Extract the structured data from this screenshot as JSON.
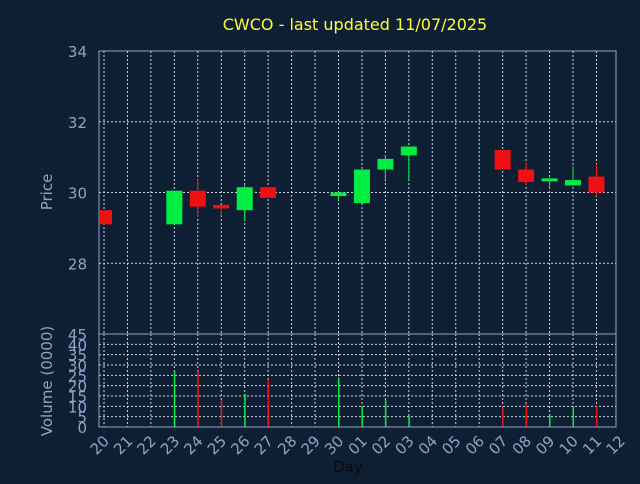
{
  "chart_data": [
    {
      "type": "candlestick",
      "title": "CWCO - last updated 11/07/2025",
      "ylabel": "Price",
      "ylim": [
        26,
        34
      ],
      "yticks": [
        "28",
        "30",
        "32",
        "34"
      ],
      "grid": true,
      "x_ticks": [
        "20",
        "21",
        "22",
        "23",
        "24",
        "25",
        "26",
        "27",
        "28",
        "29",
        "30",
        "01",
        "02",
        "03",
        "04",
        "05",
        "06",
        "07",
        "08",
        "09",
        "10",
        "11",
        "12"
      ],
      "candles": [
        {
          "x": "20",
          "open": 29.5,
          "close": 29.1,
          "high": 29.5,
          "low": 29.1
        },
        {
          "x": "23",
          "open": 29.1,
          "close": 30.05,
          "high": 30.05,
          "low": 29.1
        },
        {
          "x": "24",
          "open": 30.05,
          "close": 29.6,
          "high": 30.4,
          "low": 29.3
        },
        {
          "x": "25",
          "open": 29.65,
          "close": 29.55,
          "high": 29.65,
          "low": 29.35
        },
        {
          "x": "26",
          "open": 29.5,
          "close": 30.15,
          "high": 30.2,
          "low": 29.2
        },
        {
          "x": "27",
          "open": 30.15,
          "close": 29.85,
          "high": 30.15,
          "low": 29.85
        },
        {
          "x": "30",
          "open": 29.9,
          "close": 30.0,
          "high": 30.05,
          "low": 29.75
        },
        {
          "x": "01",
          "open": 29.7,
          "close": 30.65,
          "high": 30.65,
          "low": 29.7
        },
        {
          "x": "02",
          "open": 30.65,
          "close": 30.95,
          "high": 31.05,
          "low": 30.3
        },
        {
          "x": "03",
          "open": 31.05,
          "close": 31.3,
          "high": 31.3,
          "low": 30.35
        },
        {
          "x": "07",
          "open": 31.2,
          "close": 30.65,
          "high": 31.2,
          "low": 30.65
        },
        {
          "x": "08",
          "open": 30.65,
          "close": 30.3,
          "high": 30.85,
          "low": 30.2
        },
        {
          "x": "09",
          "open": 30.35,
          "close": 30.4,
          "high": 30.4,
          "low": 30.1
        },
        {
          "x": "10",
          "open": 30.2,
          "close": 30.35,
          "high": 30.75,
          "low": 30.2
        },
        {
          "x": "11",
          "open": 30.45,
          "close": 30.0,
          "high": 30.8,
          "low": 29.9
        }
      ]
    },
    {
      "type": "bar",
      "ylabel": "Volume (0000)",
      "xlabel": "Day",
      "ylim": [
        0,
        45
      ],
      "yticks": [
        "0",
        "5",
        "10",
        "15",
        "20",
        "25",
        "30",
        "35",
        "40",
        "45"
      ],
      "grid": true,
      "bars": [
        {
          "x": "23",
          "value": 27,
          "direction": "up"
        },
        {
          "x": "24",
          "value": 27,
          "direction": "down"
        },
        {
          "x": "25",
          "value": 13,
          "direction": "down"
        },
        {
          "x": "26",
          "value": 16,
          "direction": "up"
        },
        {
          "x": "27",
          "value": 23,
          "direction": "down"
        },
        {
          "x": "30",
          "value": 24,
          "direction": "up"
        },
        {
          "x": "01",
          "value": 10,
          "direction": "up"
        },
        {
          "x": "02",
          "value": 13,
          "direction": "up"
        },
        {
          "x": "03",
          "value": 6,
          "direction": "up"
        },
        {
          "x": "07",
          "value": 10,
          "direction": "down"
        },
        {
          "x": "08",
          "value": 11,
          "direction": "down"
        },
        {
          "x": "09",
          "value": 6,
          "direction": "up"
        },
        {
          "x": "10",
          "value": 10,
          "direction": "up"
        },
        {
          "x": "11",
          "value": 10,
          "direction": "down"
        }
      ]
    }
  ],
  "colors": {
    "background": "#0f1f33",
    "frame": "#8aa6c8",
    "grid": "#c8d4e4",
    "up": "#00ee44",
    "down": "#ee1111",
    "title": "#ffff33",
    "text": "#8aa6c8",
    "xlabel_text": "#0b0b0b"
  }
}
